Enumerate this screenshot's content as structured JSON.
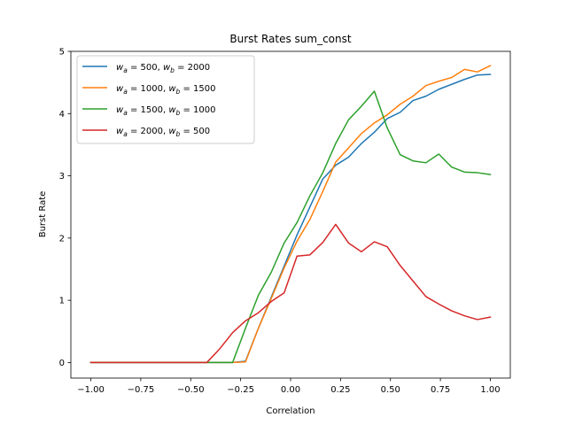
{
  "chart_data": {
    "type": "line",
    "title": "Burst Rates sum_const",
    "xlabel": "Correlation",
    "ylabel": "Burst Rate",
    "xlim": [
      -1.1,
      1.1
    ],
    "ylim": [
      -0.25,
      5
    ],
    "xticks": [
      -1.0,
      -0.75,
      -0.5,
      -0.25,
      0.0,
      0.25,
      0.5,
      0.75,
      1.0
    ],
    "xtick_labels": [
      "−1.00",
      "−0.75",
      "−0.50",
      "−0.25",
      "0.00",
      "0.25",
      "0.50",
      "0.75",
      "1.00"
    ],
    "yticks": [
      0,
      1,
      2,
      3,
      4,
      5
    ],
    "ytick_labels": [
      "0",
      "1",
      "2",
      "3",
      "4",
      "5"
    ],
    "grid": false,
    "legend_position": "upper-left",
    "x": [
      -1.0,
      -0.9355,
      -0.871,
      -0.8065,
      -0.7419,
      -0.6774,
      -0.6129,
      -0.5484,
      -0.4839,
      -0.4194,
      -0.3548,
      -0.2903,
      -0.2258,
      -0.1613,
      -0.0968,
      -0.0323,
      0.0323,
      0.0968,
      0.1613,
      0.2258,
      0.2903,
      0.3548,
      0.4194,
      0.4839,
      0.5484,
      0.6129,
      0.6774,
      0.7419,
      0.8065,
      0.871,
      0.9355,
      1.0
    ],
    "series": [
      {
        "name": "w_a = 500, w_b = 2000",
        "label_parts": {
          "a_val": "500",
          "b_val": "2000"
        },
        "color": "#1f77b4",
        "values": [
          0,
          0,
          0,
          0,
          0,
          0,
          0,
          0,
          0,
          0,
          0,
          0,
          0.02,
          0.55,
          1.05,
          1.55,
          2.05,
          2.5,
          2.95,
          3.17,
          3.3,
          3.52,
          3.7,
          3.92,
          4.02,
          4.21,
          4.28,
          4.39,
          4.47,
          4.55,
          4.62,
          4.63
        ]
      },
      {
        "name": "w_a = 1000, w_b = 1500",
        "label_parts": {
          "a_val": "1000",
          "b_val": "1500"
        },
        "color": "#ff7f0e",
        "values": [
          0,
          0,
          0,
          0,
          0,
          0,
          0,
          0,
          0,
          0,
          0,
          0,
          0.01,
          0.55,
          1.03,
          1.52,
          1.95,
          2.3,
          2.75,
          3.22,
          3.45,
          3.68,
          3.85,
          3.98,
          4.15,
          4.28,
          4.45,
          4.52,
          4.58,
          4.71,
          4.67,
          4.77
        ]
      },
      {
        "name": "w_a = 1500, w_b = 1000",
        "label_parts": {
          "a_val": "1500",
          "b_val": "1000"
        },
        "color": "#2ca02c",
        "values": [
          0,
          0,
          0,
          0,
          0,
          0,
          0,
          0,
          0,
          0,
          0,
          0,
          0.55,
          1.08,
          1.45,
          1.92,
          2.25,
          2.68,
          3.05,
          3.52,
          3.9,
          4.12,
          4.36,
          3.77,
          3.34,
          3.24,
          3.21,
          3.35,
          3.14,
          3.06,
          3.05,
          3.02
        ]
      },
      {
        "name": "w_a = 2000, w_b = 500",
        "label_parts": {
          "a_val": "2000",
          "b_val": "500"
        },
        "color": "#d62728",
        "values": [
          0,
          0,
          0,
          0,
          0,
          0,
          0,
          0,
          0,
          0,
          0.22,
          0.48,
          0.67,
          0.8,
          0.98,
          1.12,
          1.71,
          1.73,
          1.93,
          2.22,
          1.92,
          1.78,
          1.94,
          1.86,
          1.56,
          1.31,
          1.06,
          0.94,
          0.83,
          0.75,
          0.69,
          0.73
        ]
      }
    ]
  }
}
